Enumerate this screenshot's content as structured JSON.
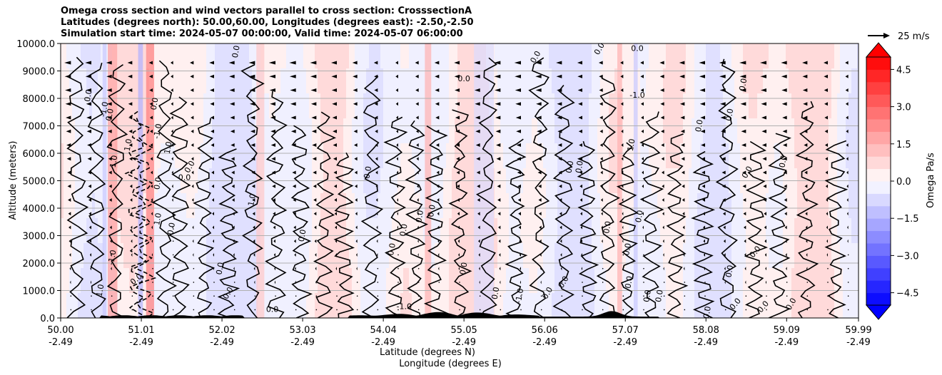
{
  "chart_data": {
    "type": "heatmap",
    "title_lines": [
      "Omega cross section and wind vectors parallel to cross section: CrosssectionA",
      "Latitudes (degrees north): 50.00,60.00, Longitudes (degrees east): -2.50,-2.50",
      "Simulation start time: 2024-05-07 00:00:00, Valid time: 2024-05-07 06:00:00"
    ],
    "xlabel": "Latitude (degrees N)",
    "xlabel2": "Longitude (degrees E)",
    "ylabel": "Altitude (meters)",
    "xlim": [
      50.0,
      59.99
    ],
    "ylim": [
      0,
      10000
    ],
    "x_ticks": [
      {
        "lat": "50.00",
        "lon": "-2.49"
      },
      {
        "lat": "51.01",
        "lon": "-2.49"
      },
      {
        "lat": "52.02",
        "lon": "-2.49"
      },
      {
        "lat": "53.03",
        "lon": "-2.49"
      },
      {
        "lat": "54.04",
        "lon": "-2.49"
      },
      {
        "lat": "55.05",
        "lon": "-2.49"
      },
      {
        "lat": "56.06",
        "lon": "-2.49"
      },
      {
        "lat": "57.07",
        "lon": "-2.49"
      },
      {
        "lat": "58.08",
        "lon": "-2.49"
      },
      {
        "lat": "59.09",
        "lon": "-2.49"
      },
      {
        "lat": "59.99",
        "lon": "-2.49"
      }
    ],
    "y_ticks": [
      "0.0",
      "1000.0",
      "2000.0",
      "3000.0",
      "4000.0",
      "5000.0",
      "6000.0",
      "7000.0",
      "8000.0",
      "9000.0",
      "10000.0"
    ],
    "grid": "horizontal",
    "colorbar": {
      "label": "Omega Pa/s",
      "range": [
        -5.0,
        5.0
      ],
      "ticks": [
        "4.5",
        "3.0",
        "1.5",
        "0.0",
        "−1.5",
        "−3.0",
        "−4.5"
      ],
      "low_color": "#0000ff",
      "high_color": "#ff0000",
      "mid_color": "#ffffff"
    },
    "quiver_key": {
      "label": "25 m/s"
    },
    "contour_labels": [
      {
        "text": "0.0",
        "lat": 50.35,
        "alt": 8100,
        "rot": -80
      },
      {
        "text": "-1.0",
        "lat": 50.55,
        "alt": 7600,
        "rot": -80
      },
      {
        "text": "0.0",
        "lat": 50.62,
        "alt": 7400,
        "rot": -80
      },
      {
        "text": "1.0",
        "lat": 50.85,
        "alt": 6300,
        "rot": -80
      },
      {
        "text": "1.0",
        "lat": 50.67,
        "alt": 5700,
        "rot": -80
      },
      {
        "text": "0.0",
        "lat": 51.18,
        "alt": 7800,
        "rot": -80
      },
      {
        "text": "-1.0",
        "lat": 51.22,
        "alt": 6800,
        "rot": -80
      },
      {
        "text": "1.0",
        "lat": 51.35,
        "alt": 6200,
        "rot": -80
      },
      {
        "text": "0.0",
        "lat": 51.62,
        "alt": 5500,
        "rot": -60
      },
      {
        "text": "0.0",
        "lat": 51.55,
        "alt": 5100,
        "rot": 0
      },
      {
        "text": "0.0",
        "lat": 51.22,
        "alt": 4900,
        "rot": -80
      },
      {
        "text": "1.0",
        "lat": 51.22,
        "alt": 3600,
        "rot": -80
      },
      {
        "text": "0.0",
        "lat": 51.39,
        "alt": 3250,
        "rot": -80
      },
      {
        "text": "-1.0",
        "lat": 50.65,
        "alt": 2200,
        "rot": -80
      },
      {
        "text": "0.0",
        "lat": 50.95,
        "alt": 1400,
        "rot": -40
      },
      {
        "text": "1.0",
        "lat": 50.5,
        "alt": 1000,
        "rot": -80
      },
      {
        "text": "0.0",
        "lat": 52.2,
        "alt": 9700,
        "rot": -80
      },
      {
        "text": "1.0",
        "lat": 52.4,
        "alt": 4300,
        "rot": -80
      },
      {
        "text": "0.0",
        "lat": 53.03,
        "alt": 3000,
        "rot": -80
      },
      {
        "text": "0.0",
        "lat": 53.85,
        "alt": 5300,
        "rot": -80
      },
      {
        "text": "0.0",
        "lat": 52.0,
        "alt": 1800,
        "rot": -80
      },
      {
        "text": "0.0",
        "lat": 52.1,
        "alt": 900,
        "rot": -60
      },
      {
        "text": "0.0",
        "lat": 52.65,
        "alt": 300,
        "rot": 0
      },
      {
        "text": "0.0",
        "lat": 54.15,
        "alt": 2500,
        "rot": -80
      },
      {
        "text": "0.0",
        "lat": 54.3,
        "alt": 3200,
        "rot": -80
      },
      {
        "text": "0.0",
        "lat": 54.5,
        "alt": 3700,
        "rot": -80
      },
      {
        "text": "0.0",
        "lat": 54.65,
        "alt": 3900,
        "rot": -80
      },
      {
        "text": "-1.0",
        "lat": 54.3,
        "alt": 400,
        "rot": 0
      },
      {
        "text": "0.0",
        "lat": 55.05,
        "alt": 8700,
        "rot": 0
      },
      {
        "text": "0.0",
        "lat": 55.05,
        "alt": 1800,
        "rot": -80
      },
      {
        "text": "0.0",
        "lat": 55.45,
        "alt": 900,
        "rot": -80
      },
      {
        "text": "-1.0",
        "lat": 55.75,
        "alt": 800,
        "rot": -80
      },
      {
        "text": "0.0",
        "lat": 56.38,
        "alt": 5500,
        "rot": -80
      },
      {
        "text": "0.0",
        "lat": 56.5,
        "alt": 5500,
        "rot": -80
      },
      {
        "text": "0.0",
        "lat": 56.3,
        "alt": 1300,
        "rot": -60
      },
      {
        "text": "0.0",
        "lat": 56.1,
        "alt": 900,
        "rot": -60
      },
      {
        "text": "0.0",
        "lat": 56.85,
        "alt": 3300,
        "rot": -80
      },
      {
        "text": "1.0",
        "lat": 57.15,
        "alt": 6300,
        "rot": -80
      },
      {
        "text": "0.0",
        "lat": 57.25,
        "alt": 3700,
        "rot": -80
      },
      {
        "text": "-1.0",
        "lat": 57.22,
        "alt": 8100,
        "rot": 0
      },
      {
        "text": "0.0",
        "lat": 57.22,
        "alt": 9800,
        "rot": 0
      },
      {
        "text": "0.0",
        "lat": 57.1,
        "alt": 2500,
        "rot": -80
      },
      {
        "text": "0.0",
        "lat": 57.12,
        "alt": 1300,
        "rot": -80
      },
      {
        "text": "0.0",
        "lat": 57.35,
        "alt": 800,
        "rot": -80
      },
      {
        "text": "0.0",
        "lat": 57.5,
        "alt": 800,
        "rot": -80
      },
      {
        "text": "0.0",
        "lat": 58.38,
        "alt": 1700,
        "rot": -80
      },
      {
        "text": "0.0",
        "lat": 58.38,
        "alt": 7400,
        "rot": -80
      },
      {
        "text": "0.0",
        "lat": 58.0,
        "alt": 7000,
        "rot": -80
      },
      {
        "text": "0.0",
        "lat": 58.7,
        "alt": 2400,
        "rot": -50
      },
      {
        "text": "0.0",
        "lat": 58.6,
        "alt": 5300,
        "rot": -60
      },
      {
        "text": "0.0",
        "lat": 58.55,
        "alt": 8500,
        "rot": -80
      },
      {
        "text": "0.0",
        "lat": 59.05,
        "alt": 5700,
        "rot": -80
      },
      {
        "text": "0.0",
        "lat": 58.45,
        "alt": 500,
        "rot": -50
      },
      {
        "text": "0.0",
        "lat": 58.8,
        "alt": 400,
        "rot": -50
      },
      {
        "text": "0.0",
        "lat": 59.15,
        "alt": 500,
        "rot": -60
      },
      {
        "text": "0.0",
        "lat": 58.1,
        "alt": 200,
        "rot": -80
      },
      {
        "text": "0.0",
        "lat": 55.95,
        "alt": 9500,
        "rot": -60
      },
      {
        "text": "0.0",
        "lat": 56.75,
        "alt": 9800,
        "rot": -60
      }
    ]
  }
}
